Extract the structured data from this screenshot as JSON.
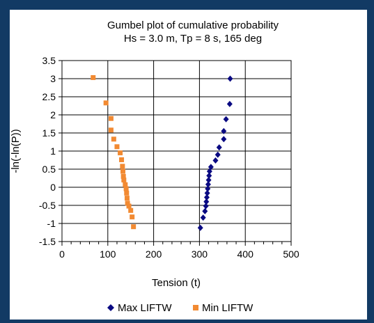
{
  "chart_data": {
    "type": "scatter",
    "title": "Gumbel plot of cumulative probability",
    "subtitle": "Hs = 3.0 m, Tp = 8 s, 165 deg",
    "xlabel": "Tension (t)",
    "ylabel": "-ln(-ln(P))",
    "xlim": [
      0,
      500
    ],
    "ylim": [
      -1.5,
      3.5
    ],
    "x_ticks": [
      "0",
      "100",
      "200",
      "300",
      "400",
      "500"
    ],
    "y_ticks": [
      "3.5",
      "3",
      "2.5",
      "2",
      "1.5",
      "1",
      "0.5",
      "0",
      "-0.5",
      "-1",
      "-1.5"
    ],
    "grid": "vertical and horizontal major lines",
    "legend": "bottom",
    "series": [
      {
        "name": "Max LIFTW",
        "color": "#0a0a82",
        "marker": "diamond",
        "points": [
          [
            367,
            3.0
          ],
          [
            366,
            2.3
          ],
          [
            358,
            1.88
          ],
          [
            353,
            1.55
          ],
          [
            353,
            1.33
          ],
          [
            343,
            1.1
          ],
          [
            340,
            0.9
          ],
          [
            335,
            0.74
          ],
          [
            325,
            0.56
          ],
          [
            322,
            0.44
          ],
          [
            321,
            0.32
          ],
          [
            320,
            0.2
          ],
          [
            319,
            0.08
          ],
          [
            318,
            -0.04
          ],
          [
            317,
            -0.16
          ],
          [
            316,
            -0.28
          ],
          [
            315,
            -0.4
          ],
          [
            314,
            -0.52
          ],
          [
            312,
            -0.66
          ],
          [
            308,
            -0.84
          ],
          [
            302,
            -1.12
          ]
        ]
      },
      {
        "name": "Min LIFTW",
        "color": "#f28a32",
        "marker": "square",
        "points": [
          [
            68,
            3.03
          ],
          [
            96,
            2.33
          ],
          [
            107,
            1.9
          ],
          [
            107,
            1.58
          ],
          [
            113,
            1.33
          ],
          [
            120,
            1.12
          ],
          [
            127,
            0.95
          ],
          [
            130,
            0.76
          ],
          [
            132,
            0.58
          ],
          [
            133,
            0.44
          ],
          [
            134,
            0.3
          ],
          [
            135,
            0.2
          ],
          [
            138,
            0.07
          ],
          [
            140,
            -0.04
          ],
          [
            141,
            -0.16
          ],
          [
            142,
            -0.3
          ],
          [
            143,
            -0.44
          ],
          [
            146,
            -0.52
          ],
          [
            150,
            -0.64
          ],
          [
            153,
            -0.82
          ],
          [
            156,
            -1.09
          ]
        ]
      }
    ]
  }
}
